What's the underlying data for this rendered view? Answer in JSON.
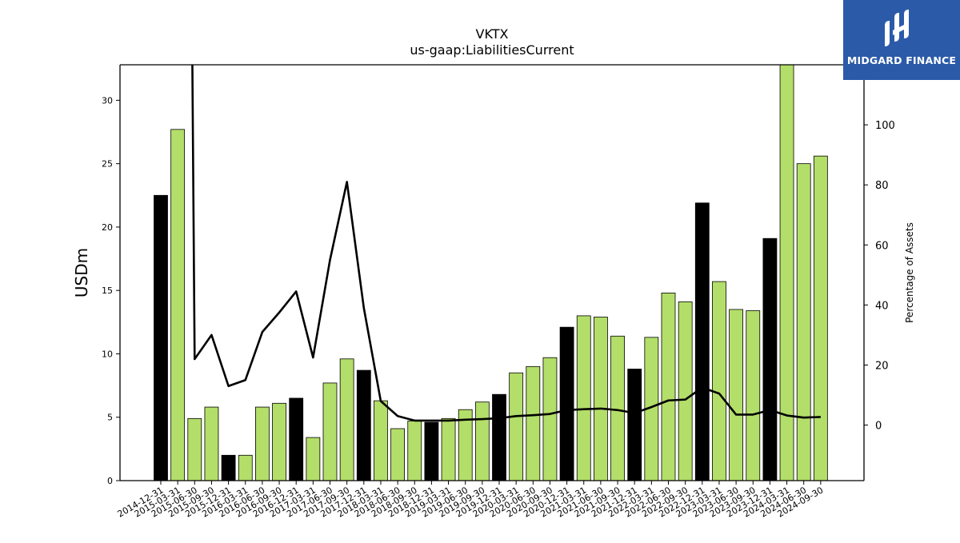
{
  "brand": {
    "name": "MIDGARD FINANCE",
    "bg_color": "#2b5aa8",
    "icon": "midgard-logo-icon"
  },
  "chart_data": {
    "type": "bar",
    "title": "VKTX",
    "subtitle": "us-gaap:LiabilitiesCurrent",
    "ylabel": "USDm",
    "y2label": "Percentage of Assets",
    "ylim": [
      0,
      32.8
    ],
    "y2lim": [
      -18.5,
      120
    ],
    "yticks": [
      0,
      5,
      10,
      15,
      20,
      25,
      30
    ],
    "y2ticks": [
      0,
      20,
      40,
      60,
      80,
      100
    ],
    "grid": false,
    "colors": {
      "q4_bar": "#000000",
      "other_bar": "#b3de69",
      "line": "#000000"
    },
    "categories": [
      "2014-12-31",
      "2015-03-31",
      "2015-06-30",
      "2015-09-30",
      "2015-12-31",
      "2016-03-31",
      "2016-06-30",
      "2016-09-30",
      "2016-12-31",
      "2017-03-31",
      "2017-06-30",
      "2017-09-30",
      "2017-12-31",
      "2018-03-31",
      "2018-06-30",
      "2018-09-30",
      "2018-12-31",
      "2019-03-31",
      "2019-06-30",
      "2019-09-30",
      "2019-12-31",
      "2020-03-31",
      "2020-06-30",
      "2020-09-30",
      "2020-12-31",
      "2021-03-31",
      "2021-06-30",
      "2021-09-30",
      "2021-12-31",
      "2022-03-31",
      "2022-06-30",
      "2022-09-30",
      "2022-12-31",
      "2023-03-31",
      "2023-06-30",
      "2023-09-30",
      "2023-12-31",
      "2024-03-31",
      "2024-06-30",
      "2024-09-30"
    ],
    "series": [
      {
        "type": "bar",
        "values": [
          22.5,
          27.7,
          4.9,
          5.8,
          2.0,
          2.0,
          5.8,
          6.1,
          6.5,
          3.4,
          7.7,
          9.6,
          8.7,
          6.3,
          4.1,
          4.7,
          4.6,
          4.9,
          5.6,
          6.2,
          6.8,
          8.5,
          9.0,
          9.7,
          12.1,
          13.0,
          12.9,
          11.4,
          8.8,
          11.3,
          14.8,
          14.1,
          21.9,
          15.7,
          13.5,
          13.4,
          19.1,
          32.8,
          25.0,
          25.6
        ]
      },
      {
        "type": "line",
        "axis": "right",
        "values": [
          null,
          null,
          22,
          30,
          13,
          15,
          31,
          37.5,
          44.5,
          22.5,
          55,
          81,
          39,
          8,
          3,
          1.5,
          1.5,
          1.5,
          1.8,
          2,
          2.3,
          3,
          3.3,
          3.7,
          5,
          5.3,
          5.5,
          5,
          4,
          6,
          8.2,
          8.5,
          12.5,
          10.5,
          3.5,
          3.5,
          5,
          3.2,
          2.5,
          2.7
        ],
        "offscale_start": true
      }
    ]
  }
}
